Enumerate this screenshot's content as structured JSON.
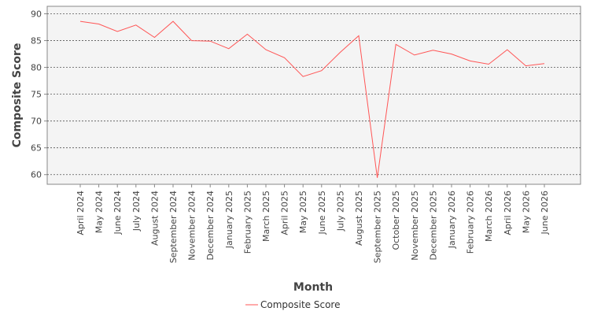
{
  "chart_data": {
    "type": "line",
    "xlabel": "Month",
    "ylabel": "Composite Score",
    "ylim": [
      58.2,
      91.4
    ],
    "yticks": [
      60,
      65,
      70,
      75,
      80,
      85,
      90
    ],
    "grid": true,
    "legend_position": "bottom-center",
    "categories": [
      "April 2024",
      "May 2024",
      "June 2024",
      "July 2024",
      "August 2024",
      "September 2024",
      "November 2024",
      "December 2024",
      "January 2025",
      "February 2025",
      "March 2025",
      "April 2025",
      "May 2025",
      "June 2025",
      "July 2025",
      "August 2025",
      "September 2025",
      "October 2025",
      "November 2025",
      "December 2025",
      "January 2026",
      "February 2026",
      "March 2026",
      "April 2026",
      "May 2026",
      "June 2026"
    ],
    "series": [
      {
        "name": "Composite Score",
        "color": "#ff5555",
        "values": [
          88.6,
          88.1,
          86.7,
          87.9,
          85.6,
          88.6,
          85.0,
          84.9,
          83.5,
          86.2,
          83.3,
          81.8,
          78.3,
          79.4,
          82.8,
          85.9,
          59.4,
          84.3,
          82.3,
          83.2,
          82.5,
          81.2,
          80.6,
          83.3,
          80.3,
          80.7
        ]
      }
    ]
  }
}
